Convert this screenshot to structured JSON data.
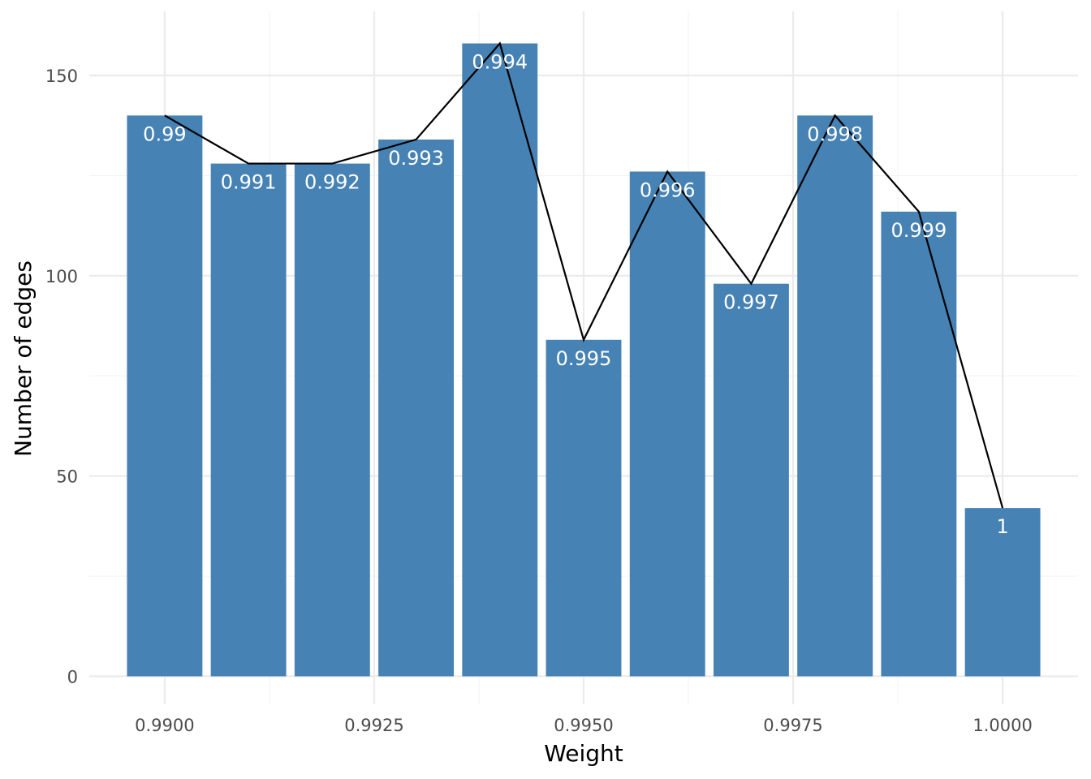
{
  "chart_data": {
    "type": "bar",
    "x": [
      0.99,
      0.991,
      0.992,
      0.993,
      0.994,
      0.995,
      0.996,
      0.997,
      0.998,
      0.999,
      1.0
    ],
    "values": [
      140,
      128,
      128,
      134,
      158,
      84,
      126,
      98,
      140,
      116,
      42
    ],
    "bar_labels": [
      "0.99",
      "0.991",
      "0.992",
      "0.993",
      "0.994",
      "0.995",
      "0.996",
      "0.997",
      "0.998",
      "0.999",
      "1"
    ],
    "overlay_line": true,
    "xlabel": "Weight",
    "ylabel": "Number of edges",
    "xlim": [
      0.9891,
      1.0009
    ],
    "ylim": [
      -7,
      166
    ],
    "x_ticks": [
      0.99,
      0.9925,
      0.995,
      0.9975,
      1.0
    ],
    "x_tick_labels": [
      "0.9900",
      "0.9925",
      "0.9950",
      "0.9975",
      "1.0000"
    ],
    "y_ticks": [
      0,
      50,
      100,
      150
    ],
    "y_tick_labels": [
      "0",
      "50",
      "100",
      "150"
    ],
    "grid": true,
    "bar_color": "#4682b4",
    "line_color": "#000000"
  }
}
